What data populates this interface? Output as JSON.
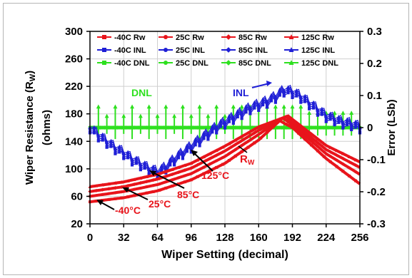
{
  "chart_data": {
    "type": "line",
    "x_axis": {
      "label": "Wiper Setting (decimal)",
      "range": [
        0,
        256
      ],
      "ticks": [
        "0",
        "32",
        "64",
        "96",
        "128",
        "160",
        "192",
        "224",
        "256"
      ]
    },
    "y_left": {
      "label_main": "Wiper Resistance (R",
      "label_sub": "W",
      "label_close": ")",
      "label2": "(ohms)",
      "range": [
        20,
        300
      ],
      "ticks": [
        "20",
        "60",
        "100",
        "140",
        "180",
        "220",
        "260",
        "300"
      ]
    },
    "y_right": {
      "label": "Error (LSb)",
      "range": [
        -0.3,
        0.3
      ],
      "ticks": [
        "-0.3",
        "-0.2",
        "-0.1",
        "0",
        "0.1",
        "0.2",
        "0.3"
      ]
    },
    "legend": [
      {
        "name": "-40C Rw",
        "color": "#e8141b",
        "marker": "square"
      },
      {
        "name": "25C Rw",
        "color": "#e8141b",
        "marker": "circle"
      },
      {
        "name": "85C Rw",
        "color": "#e8141b",
        "marker": "diamond"
      },
      {
        "name": "125C Rw",
        "color": "#e8141b",
        "marker": "triangle"
      },
      {
        "name": "-40C INL",
        "color": "#1f1fd6",
        "marker": "square"
      },
      {
        "name": "25C INL",
        "color": "#1f1fd6",
        "marker": "circle"
      },
      {
        "name": "85C INL",
        "color": "#1f1fd6",
        "marker": "diamond"
      },
      {
        "name": "125C INL",
        "color": "#1f1fd6",
        "marker": "triangle"
      },
      {
        "name": "-40C DNL",
        "color": "#2ee01f",
        "marker": "square"
      },
      {
        "name": "25C DNL",
        "color": "#2ee01f",
        "marker": "circle"
      },
      {
        "name": "85C DNL",
        "color": "#2ee01f",
        "marker": "diamond"
      },
      {
        "name": "125C DNL",
        "color": "#2ee01f",
        "marker": "triangle"
      }
    ],
    "rw_series": [
      {
        "temp": "-40C",
        "points": [
          [
            0,
            52
          ],
          [
            32,
            58
          ],
          [
            64,
            68
          ],
          [
            96,
            84
          ],
          [
            128,
            108
          ],
          [
            160,
            142
          ],
          [
            180,
            170
          ],
          [
            192,
            160
          ],
          [
            224,
            115
          ],
          [
            256,
            78
          ]
        ]
      },
      {
        "temp": "25C",
        "points": [
          [
            0,
            60
          ],
          [
            32,
            67
          ],
          [
            64,
            77
          ],
          [
            96,
            93
          ],
          [
            128,
            118
          ],
          [
            160,
            150
          ],
          [
            183,
            174
          ],
          [
            192,
            164
          ],
          [
            224,
            122
          ],
          [
            256,
            92
          ]
        ]
      },
      {
        "temp": "85C",
        "points": [
          [
            0,
            67
          ],
          [
            32,
            74
          ],
          [
            64,
            85
          ],
          [
            96,
            101
          ],
          [
            128,
            126
          ],
          [
            160,
            156
          ],
          [
            186,
            176
          ],
          [
            192,
            168
          ],
          [
            224,
            128
          ],
          [
            256,
            102
          ]
        ]
      },
      {
        "temp": "125C",
        "points": [
          [
            0,
            74
          ],
          [
            32,
            81
          ],
          [
            64,
            92
          ],
          [
            96,
            108
          ],
          [
            128,
            133
          ],
          [
            160,
            161
          ],
          [
            188,
            177
          ],
          [
            192,
            172
          ],
          [
            224,
            134
          ],
          [
            256,
            110
          ]
        ]
      }
    ],
    "inl_envelope": [
      [
        0,
        0.005
      ],
      [
        8,
        -0.02
      ],
      [
        16,
        -0.04
      ],
      [
        24,
        -0.06
      ],
      [
        32,
        -0.075
      ],
      [
        40,
        -0.095
      ],
      [
        48,
        -0.11
      ],
      [
        56,
        -0.125
      ],
      [
        64,
        -0.135
      ],
      [
        72,
        -0.12
      ],
      [
        80,
        -0.095
      ],
      [
        88,
        -0.075
      ],
      [
        96,
        -0.055
      ],
      [
        104,
        -0.035
      ],
      [
        112,
        -0.015
      ],
      [
        120,
        0.005
      ],
      [
        128,
        0.02
      ],
      [
        136,
        0.035
      ],
      [
        144,
        0.05
      ],
      [
        152,
        0.065
      ],
      [
        160,
        0.075
      ],
      [
        168,
        0.085
      ],
      [
        176,
        0.1
      ],
      [
        184,
        0.12
      ],
      [
        192,
        0.115
      ],
      [
        200,
        0.1
      ],
      [
        208,
        0.08
      ],
      [
        216,
        0.06
      ],
      [
        224,
        0.04
      ],
      [
        232,
        0.03
      ],
      [
        240,
        0.02
      ],
      [
        248,
        0.015
      ],
      [
        256,
        0.005
      ]
    ],
    "dnl_max": 0.065,
    "annotations": {
      "dnl": "DNL",
      "inl": "INL",
      "rw": "R",
      "rw_sub": "W",
      "t125": "125°C",
      "t85": "85°C",
      "t25": "25°C",
      "tm40": "-40°C"
    },
    "grid": true,
    "legend_position": "top"
  }
}
